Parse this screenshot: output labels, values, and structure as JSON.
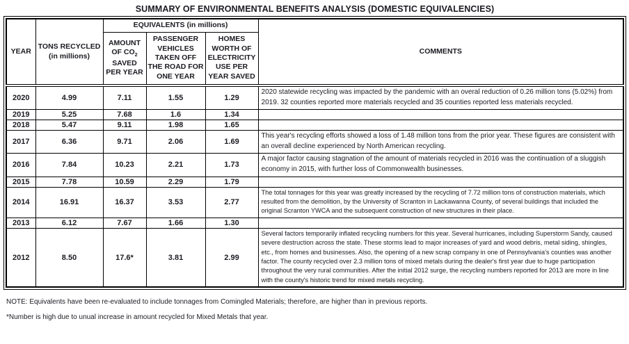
{
  "title": "SUMMARY OF ENVIRONMENTAL BENEFITS ANALYSIS (DOMESTIC EQUIVALENCIES)",
  "table": {
    "headers": {
      "year": "YEAR",
      "tons": "TONS RECYCLED (in millions)",
      "equivalents": "EQUIVALENTS (in millions)",
      "co2_pre": "AMOUNT OF CO",
      "co2_sub": "2",
      "co2_post": " SAVED PER YEAR",
      "vehicles": "PASSENGER VEHICLES TAKEN OFF THE ROAD FOR ONE YEAR",
      "homes": "HOMES WORTH OF ELECTRICITY USE PER YEAR SAVED",
      "comments": "COMMENTS"
    },
    "rows": [
      {
        "year": "2020",
        "tons": "4.99",
        "co2": "7.11",
        "vehicles": "1.55",
        "homes": "1.29",
        "comment": "2020 statewide recycling was impacted by the pandemic with an overal reduction of 0.26 million tons (5.02%) from 2019. 32 counties reported more materials recycled and 35 counties reported less materials recycled."
      },
      {
        "year": "2019",
        "tons": "5.25",
        "co2": "7.68",
        "vehicles": "1.6",
        "homes": "1.34",
        "comment": ""
      },
      {
        "year": "2018",
        "tons": "5.47",
        "co2": "9.11",
        "vehicles": "1.98",
        "homes": "1.65",
        "comment": ""
      },
      {
        "year": "2017",
        "tons": "6.36",
        "co2": "9.71",
        "vehicles": "2.06",
        "homes": "1.69",
        "comment": "This year's recycling efforts showed a loss of 1.48 million tons from the prior year. These figures are consistent with an overall decline experienced by North American recycling."
      },
      {
        "year": "2016",
        "tons": "7.84",
        "co2": "10.23",
        "vehicles": "2.21",
        "homes": "1.73",
        "comment": "A major factor causing stagnation of the amount of materials recycled in 2016 was the continuation of a sluggish economy in 2015, with further loss of Commonwealth businesses."
      },
      {
        "year": "2015",
        "tons": "7.78",
        "co2": "10.59",
        "vehicles": "2.29",
        "homes": "1.79",
        "comment": ""
      },
      {
        "year": "2014",
        "tons": "16.91",
        "co2": "16.37",
        "vehicles": "3.53",
        "homes": "2.77",
        "comment": "The total tonnages for this year was greatly increased by the recycling of 7.72 million tons of construction materials, which resulted from the demolition, by the University of Scranton in Lackawanna County, of several buildings that included the original Scranton YWCA and the subsequent construction of new structures in their place."
      },
      {
        "year": "2013",
        "tons": "6.12",
        "co2": "7.67",
        "vehicles": "1.66",
        "homes": "1.30",
        "comment": ""
      },
      {
        "year": "2012",
        "tons": "8.50",
        "co2": "17.6*",
        "vehicles": "3.81",
        "homes": "2.99",
        "comment": "Several factors temporarily inflated recycling numbers for this year.  Several hurricanes, including Superstorm Sandy, caused severe destruction across the state.  These storms lead to major increases of yard and wood debris, metal siding, shingles, etc., from homes and businesses.  Also, the opening of a new scrap company in one of Pennsylvania's counties was another factor.  The county recycled over 2.3 million tons of mixed metals during the dealer's first year due to huge participation throughout the very rural communities.  After the initial 2012 surge, the recycling numbers reported for 2013 are more in line with the county's historic trend for mixed metals recycling."
      }
    ]
  },
  "notes": {
    "note1": "NOTE:  Equivalents have been re-evaluated to include tonnages from Comingled Materials; therefore, are higher than in previous reports.",
    "note2": "*Number is high due to unual increase in amount recycled for Mixed Metals that year."
  }
}
